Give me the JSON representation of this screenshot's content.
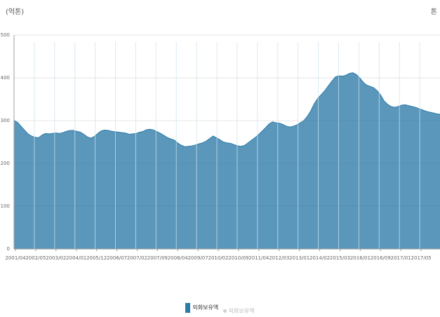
{
  "header": {
    "left_unit": "(억톤)",
    "right_unit": "톤"
  },
  "colors": {
    "fill": "#2b7aa8",
    "area_opacity": 0.78,
    "grid": "#e6e6e6",
    "axis": "#9c9c9c",
    "separator": "#cfe3ef",
    "legend_muted": "#bdbdbd"
  },
  "chart_data": {
    "type": "area",
    "grid": true,
    "legend_position": "bottom-center",
    "ylim": [
      0,
      500
    ],
    "y_ticks": [
      0,
      100,
      200,
      300,
      400,
      500
    ],
    "x_tick_labels": [
      "2001/04",
      "2002/05",
      "2003/02",
      "2004/01",
      "2005/12",
      "2006/07",
      "2007/02",
      "2007/09",
      "2008/04",
      "2009/07",
      "2010/02",
      "2010/09",
      "2011/04",
      "2012/03",
      "2013/01",
      "2014/02",
      "2015/03",
      "2016/01",
      "2016/09",
      "2017/01",
      "2017/05"
    ],
    "series": [
      {
        "name": "외화보유액",
        "values": [
          300,
          296,
          287,
          278,
          269,
          264,
          261,
          260,
          266,
          270,
          269,
          270,
          271,
          270,
          272,
          275,
          277,
          277,
          275,
          273,
          268,
          262,
          259,
          263,
          270,
          276,
          278,
          277,
          275,
          274,
          273,
          272,
          271,
          268,
          269,
          270,
          273,
          275,
          279,
          280,
          278,
          274,
          270,
          265,
          260,
          257,
          254,
          247,
          242,
          239,
          240,
          241,
          243,
          246,
          248,
          252,
          258,
          264,
          260,
          255,
          250,
          248,
          247,
          244,
          241,
          240,
          242,
          248,
          254,
          260,
          267,
          275,
          283,
          292,
          297,
          295,
          294,
          291,
          287,
          285,
          287,
          290,
          295,
          300,
          310,
          323,
          340,
          352,
          361,
          370,
          381,
          392,
          402,
          405,
          404,
          406,
          410,
          412,
          408,
          400,
          390,
          383,
          380,
          377,
          370,
          360,
          346,
          338,
          333,
          331,
          333,
          336,
          337,
          335,
          333,
          331,
          328,
          325,
          322,
          320,
          318,
          316,
          315
        ]
      },
      {
        "name": "외화보유액",
        "values": []
      }
    ],
    "separator_count": 20
  },
  "legend": {
    "items": [
      {
        "label": "외화보유액"
      },
      {
        "label": "외화보유액"
      }
    ]
  }
}
